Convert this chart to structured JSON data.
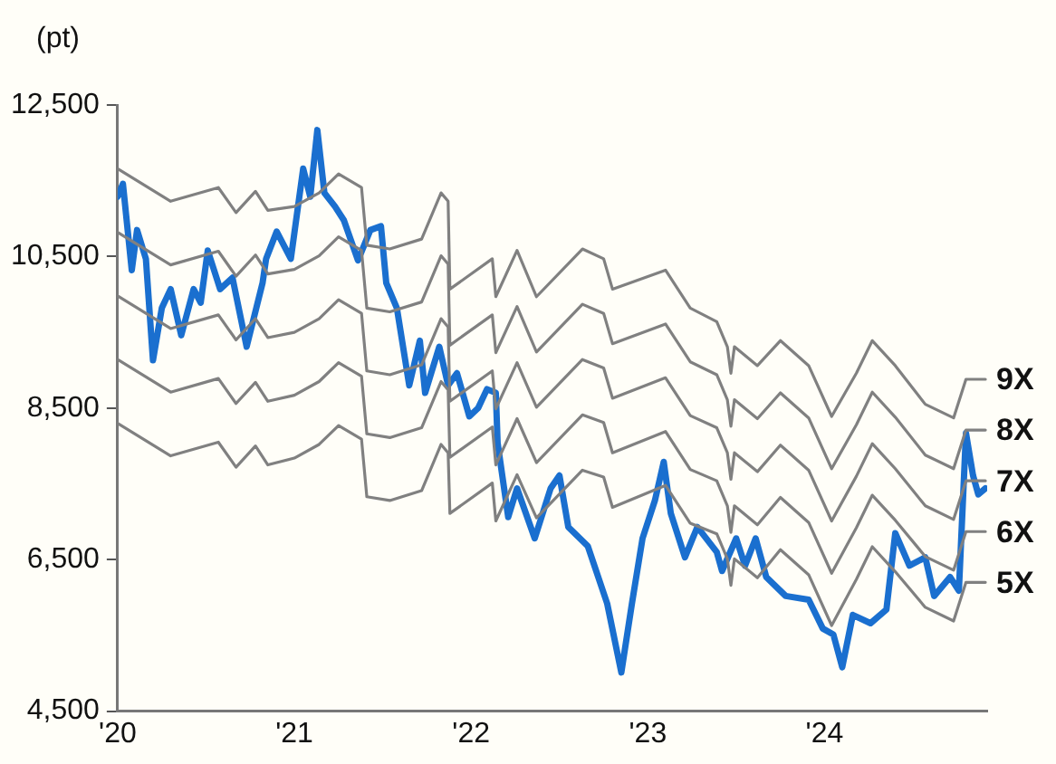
{
  "chart_data": {
    "type": "line",
    "ylabel": "(pt)",
    "xlim": [
      2020,
      2024.92
    ],
    "ylim": [
      4500,
      12500
    ],
    "xticks": [
      {
        "value": 2020,
        "label": "'20"
      },
      {
        "value": 2021,
        "label": "'21"
      },
      {
        "value": 2022,
        "label": "'22"
      },
      {
        "value": 2023,
        "label": "'23"
      },
      {
        "value": 2024,
        "label": "'24"
      }
    ],
    "yticks": [
      {
        "value": 4500,
        "label": "4,500"
      },
      {
        "value": 6500,
        "label": "6,500"
      },
      {
        "value": 8500,
        "label": "8,500"
      },
      {
        "value": 10500,
        "label": "10,500"
      },
      {
        "value": 12500,
        "label": "12,500"
      }
    ],
    "grid": false,
    "legend": false,
    "marker": "none",
    "line_style": "solid",
    "series": [
      {
        "name": "9X",
        "color": "#808080",
        "x": [
          2020.0,
          2020.3,
          2020.57,
          2020.67,
          2020.78,
          2020.85,
          2021.0,
          2021.14,
          2021.25,
          2021.38,
          2021.41,
          2021.54,
          2021.72,
          2021.83,
          2021.87,
          2021.88,
          2022.12,
          2022.14,
          2022.26,
          2022.37,
          2022.63,
          2022.75,
          2022.8,
          2023.1,
          2023.24,
          2023.39,
          2023.45,
          2023.47,
          2023.49,
          2023.62,
          2023.75,
          2023.91,
          2024.04,
          2024.18,
          2024.27,
          2024.4,
          2024.57,
          2024.73,
          2024.8,
          2024.91
        ],
        "values": [
          11660,
          11230,
          11410,
          11080,
          11360,
          11110,
          11160,
          11340,
          11590,
          11410,
          10650,
          10600,
          10730,
          11340,
          11230,
          10070,
          10470,
          9970,
          10580,
          9970,
          10600,
          10470,
          10070,
          10320,
          9820,
          9640,
          9310,
          8960,
          9310,
          9060,
          9390,
          9060,
          8390,
          8960,
          9390,
          9060,
          8550,
          8370,
          8880,
          8880
        ]
      },
      {
        "name": "8X",
        "color": "#808080",
        "x": [
          2020.0,
          2020.3,
          2020.57,
          2020.67,
          2020.78,
          2020.85,
          2021.0,
          2021.14,
          2021.25,
          2021.38,
          2021.41,
          2021.54,
          2021.72,
          2021.83,
          2021.87,
          2021.88,
          2022.12,
          2022.14,
          2022.26,
          2022.37,
          2022.63,
          2022.75,
          2022.8,
          2023.1,
          2023.24,
          2023.39,
          2023.45,
          2023.47,
          2023.49,
          2023.62,
          2023.75,
          2023.91,
          2024.04,
          2024.18,
          2024.27,
          2024.4,
          2024.57,
          2024.73,
          2024.8,
          2024.91
        ],
        "values": [
          10820,
          10390,
          10570,
          10240,
          10520,
          10270,
          10330,
          10510,
          10760,
          10580,
          9820,
          9770,
          9900,
          10510,
          10400,
          9330,
          9730,
          9230,
          9840,
          9240,
          9870,
          9750,
          9350,
          9610,
          9110,
          8940,
          8610,
          8260,
          8610,
          8360,
          8700,
          8370,
          7700,
          8280,
          8710,
          8380,
          7880,
          7700,
          8210,
          8210
        ]
      },
      {
        "name": "7X",
        "color": "#808080",
        "x": [
          2020.0,
          2020.3,
          2020.57,
          2020.67,
          2020.78,
          2020.85,
          2021.0,
          2021.14,
          2021.25,
          2021.38,
          2021.41,
          2021.54,
          2021.72,
          2021.83,
          2021.87,
          2021.88,
          2022.12,
          2022.14,
          2022.26,
          2022.37,
          2022.63,
          2022.75,
          2022.8,
          2023.1,
          2023.24,
          2023.39,
          2023.45,
          2023.47,
          2023.49,
          2023.62,
          2023.75,
          2023.91,
          2024.04,
          2024.18,
          2024.27,
          2024.4,
          2024.57,
          2024.73,
          2024.8,
          2024.91
        ],
        "values": [
          9980,
          9550,
          9730,
          9400,
          9680,
          9430,
          9500,
          9680,
          9930,
          9750,
          8990,
          8940,
          9070,
          9680,
          9570,
          8590,
          8990,
          8490,
          9100,
          8510,
          9140,
          9030,
          8630,
          8900,
          8400,
          8240,
          7910,
          7560,
          7910,
          7660,
          8010,
          7680,
          7010,
          7600,
          8030,
          7700,
          7210,
          7030,
          7540,
          7540
        ]
      },
      {
        "name": "6X",
        "color": "#808080",
        "x": [
          2020.0,
          2020.3,
          2020.57,
          2020.67,
          2020.78,
          2020.85,
          2021.0,
          2021.14,
          2021.25,
          2021.38,
          2021.41,
          2021.54,
          2021.72,
          2021.83,
          2021.87,
          2021.88,
          2022.12,
          2022.14,
          2022.26,
          2022.37,
          2022.63,
          2022.75,
          2022.8,
          2023.1,
          2023.24,
          2023.39,
          2023.45,
          2023.47,
          2023.49,
          2023.62,
          2023.75,
          2023.91,
          2024.04,
          2024.18,
          2024.27,
          2024.4,
          2024.57,
          2024.73,
          2024.8,
          2024.91
        ],
        "values": [
          9140,
          8710,
          8890,
          8560,
          8840,
          8590,
          8670,
          8850,
          9100,
          8920,
          8160,
          8110,
          8240,
          8850,
          8740,
          7850,
          8250,
          7750,
          8360,
          7780,
          8410,
          8310,
          7910,
          8190,
          7690,
          7540,
          7210,
          6860,
          7210,
          6960,
          7320,
          6990,
          6320,
          6920,
          7350,
          7020,
          6540,
          6360,
          6870,
          6870
        ]
      },
      {
        "name": "5X",
        "color": "#808080",
        "x": [
          2020.0,
          2020.3,
          2020.57,
          2020.67,
          2020.78,
          2020.85,
          2021.0,
          2021.14,
          2021.25,
          2021.38,
          2021.41,
          2021.54,
          2021.72,
          2021.83,
          2021.87,
          2021.88,
          2022.12,
          2022.14,
          2022.26,
          2022.37,
          2022.63,
          2022.75,
          2022.8,
          2023.1,
          2023.24,
          2023.39,
          2023.45,
          2023.47,
          2023.49,
          2023.62,
          2023.75,
          2023.91,
          2024.04,
          2024.18,
          2024.27,
          2024.4,
          2024.57,
          2024.73,
          2024.8,
          2024.91
        ],
        "values": [
          8300,
          7870,
          8050,
          7720,
          8000,
          7750,
          7840,
          8020,
          8270,
          8090,
          7330,
          7280,
          7410,
          8020,
          7910,
          7110,
          7510,
          7010,
          7620,
          7050,
          7680,
          7590,
          7190,
          7480,
          6980,
          6840,
          6510,
          6160,
          6510,
          6260,
          6630,
          6300,
          5630,
          6240,
          6670,
          6340,
          5870,
          5690,
          6200,
          6200
        ]
      },
      {
        "color": "#1a6fcf",
        "x": [
          2020.0,
          2020.03,
          2020.08,
          2020.11,
          2020.16,
          2020.2,
          2020.25,
          2020.3,
          2020.36,
          2020.43,
          2020.47,
          2020.51,
          2020.58,
          2020.65,
          2020.73,
          2020.82,
          2020.84,
          2020.9,
          2020.98,
          2021.05,
          2021.09,
          2021.13,
          2021.17,
          2021.23,
          2021.28,
          2021.36,
          2021.43,
          2021.49,
          2021.52,
          2021.58,
          2021.65,
          2021.71,
          2021.74,
          2021.82,
          2021.87,
          2021.92,
          2021.99,
          2022.04,
          2022.09,
          2022.14,
          2022.15,
          2022.21,
          2022.26,
          2022.36,
          2022.45,
          2022.5,
          2022.55,
          2022.66,
          2022.77,
          2022.85,
          2022.91,
          2022.97,
          2023.04,
          2023.09,
          2023.13,
          2023.21,
          2023.28,
          2023.39,
          2023.42,
          2023.5,
          2023.55,
          2023.61,
          2023.67,
          2023.78,
          2023.91,
          2023.99,
          2024.05,
          2024.1,
          2024.16,
          2024.26,
          2024.35,
          2024.4,
          2024.48,
          2024.57,
          2024.62,
          2024.71,
          2024.76,
          2024.8,
          2024.84,
          2024.87,
          2024.91
        ],
        "values": [
          11290,
          11460,
          10320,
          10850,
          10470,
          9130,
          9820,
          10070,
          9460,
          10070,
          9890,
          10580,
          10070,
          10220,
          9310,
          10150,
          10470,
          10830,
          10470,
          11660,
          11290,
          12170,
          11340,
          11160,
          10980,
          10450,
          10850,
          10900,
          10150,
          9820,
          8800,
          9390,
          8700,
          9310,
          8800,
          8960,
          8390,
          8500,
          8750,
          8700,
          8040,
          7060,
          7440,
          6780,
          7440,
          7610,
          6930,
          6680,
          5920,
          5010,
          5920,
          6780,
          7280,
          7790,
          7110,
          6530,
          6930,
          6600,
          6350,
          6780,
          6420,
          6780,
          6270,
          6020,
          5970,
          5590,
          5510,
          5080,
          5770,
          5660,
          5840,
          6850,
          6420,
          6530,
          6020,
          6270,
          6090,
          8170,
          7610,
          7360,
          7440
        ]
      }
    ]
  }
}
